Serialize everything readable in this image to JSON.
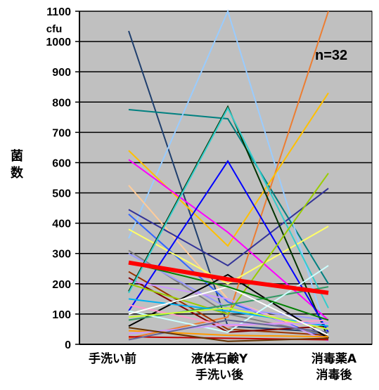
{
  "chart_data": {
    "type": "line",
    "categories": [
      "手洗い前",
      "液体石鹸Y\n手洗い後",
      "消毒薬A\n消毒後"
    ],
    "ylabel": "菌数",
    "unit": "cfu",
    "annotation": "n=32",
    "ylim": [
      0,
      1100
    ],
    "yticks": [
      0,
      100,
      200,
      300,
      400,
      500,
      600,
      700,
      800,
      900,
      1000,
      1100
    ],
    "plot_background": "#c0c0c0",
    "grid": true,
    "series": [
      {
        "values": [
          1035,
          60,
          40
        ],
        "color": "#1f3f6e"
      },
      {
        "values": [
          775,
          745,
          200
        ],
        "color": "#008080"
      },
      {
        "values": [
          350,
          1100,
          20
        ],
        "color": "#99ccff"
      },
      {
        "values": [
          20,
          90,
          1100
        ],
        "color": "#ed7d31"
      },
      {
        "values": [
          640,
          325,
          830
        ],
        "color": "#ffc000"
      },
      {
        "values": [
          610,
          370,
          80
        ],
        "color": "#ff00ff"
      },
      {
        "values": [
          525,
          150,
          20
        ],
        "color": "#ffcc99"
      },
      {
        "values": [
          445,
          260,
          515
        ],
        "color": "#333399"
      },
      {
        "values": [
          430,
          140,
          20
        ],
        "color": "#3366ff"
      },
      {
        "values": [
          380,
          200,
          390
        ],
        "color": "#ffff66"
      },
      {
        "values": [
          310,
          100,
          30
        ],
        "color": "#7f7f7f"
      },
      {
        "values": [
          300,
          120,
          80
        ],
        "color": "#9999ff"
      },
      {
        "values": [
          240,
          50,
          30
        ],
        "color": "#993300"
      },
      {
        "values": [
          220,
          40,
          60
        ],
        "color": "#800000"
      },
      {
        "values": [
          210,
          150,
          10
        ],
        "color": "#cc99ff"
      },
      {
        "values": [
          175,
          785,
          20
        ],
        "color": "#003300"
      },
      {
        "values": [
          170,
          780,
          120
        ],
        "color": "#33cccc"
      },
      {
        "values": [
          110,
          605,
          40
        ],
        "color": "#0000ff"
      },
      {
        "values": [
          200,
          100,
          565
        ],
        "color": "#99cc00"
      },
      {
        "values": [
          60,
          230,
          20
        ],
        "color": "#000000"
      },
      {
        "values": [
          80,
          130,
          190
        ],
        "color": "#339966"
      },
      {
        "values": [
          110,
          40,
          260
        ],
        "color": "#ccffff"
      },
      {
        "values": [
          150,
          110,
          60
        ],
        "color": "#00b0f0"
      },
      {
        "values": [
          130,
          60,
          80
        ],
        "color": "#ff99cc"
      },
      {
        "values": [
          90,
          120,
          50
        ],
        "color": "#ccff33"
      },
      {
        "values": [
          45,
          30,
          25
        ],
        "color": "#ff9900"
      },
      {
        "values": [
          35,
          65,
          70
        ],
        "color": "#cc99ff"
      },
      {
        "values": [
          25,
          20,
          15
        ],
        "color": "#c00000"
      },
      {
        "values": [
          15,
          80,
          40
        ],
        "color": "#666699"
      },
      {
        "values": [
          100,
          190,
          30
        ],
        "color": "#ffffff"
      },
      {
        "values": [
          270,
          190,
          80
        ],
        "color": "#008000"
      },
      {
        "values": [
          55,
          10,
          20
        ],
        "color": "#663300"
      }
    ],
    "mean_series": {
      "values": [
        270,
        215,
        170
      ],
      "color": "#ff0000"
    }
  }
}
